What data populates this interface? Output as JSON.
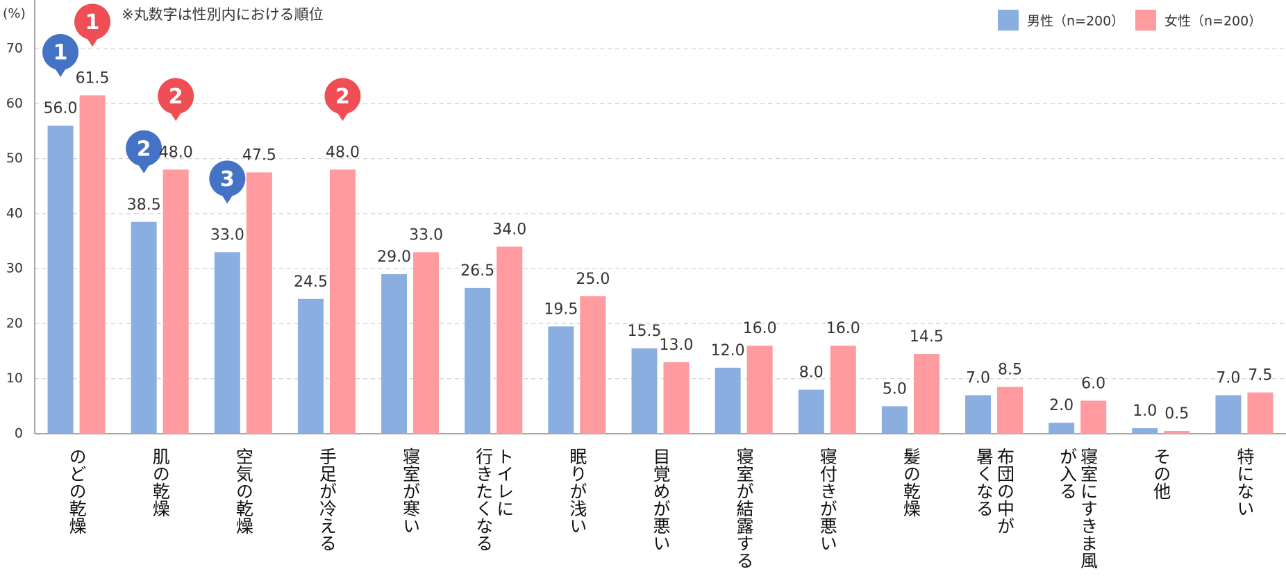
{
  "chart_data": {
    "type": "bar",
    "y_label": "(%)",
    "annotation": "※丸数字は性別内における順位",
    "categories": [
      "のどの乾燥",
      "肌の乾燥",
      "空気の乾燥",
      "手足が冷える",
      "寝室が寒い",
      "トイレに\n行きたくなる",
      "眠りが浅い",
      "目覚めが悪い",
      "寝室が結露する",
      "寝付きが悪い",
      "髪の乾燥",
      "布団の中が\n暑くなる",
      "寝室にすきま風\nが入る",
      "その他",
      "特にない"
    ],
    "series": [
      {
        "name": "男性（n=200）",
        "color": "#8aaee0",
        "values": [
          56,
          38.5,
          33,
          24.5,
          29,
          26.5,
          19.5,
          15.5,
          12,
          8,
          5,
          7,
          2,
          1,
          7
        ],
        "value_labels": [
          "56.0",
          "38.5",
          "33.0",
          "24.5",
          "29.0",
          "26.5",
          "19.5",
          "15.5",
          "12.0",
          "8.0",
          "5.0",
          "7.0",
          "2.0",
          "1.0",
          "7.0"
        ],
        "rank_labels": [
          1,
          2,
          3,
          null,
          null,
          null,
          null,
          null,
          null,
          null,
          null,
          null,
          null,
          null,
          null
        ],
        "rank_color": "#4472c4"
      },
      {
        "name": "女性（n=200）",
        "color": "#ff9a9e",
        "values": [
          61.5,
          48,
          47.5,
          48,
          33,
          34,
          25,
          13,
          16,
          16,
          14.5,
          8.5,
          6,
          0.5,
          7.5
        ],
        "value_labels": [
          "61.5",
          "48.0",
          "47.5",
          "48.0",
          "33.0",
          "34.0",
          "25.0",
          "13.0",
          "16.0",
          "16.0",
          "14.5",
          "8.5",
          "6.0",
          "0.5",
          "7.5"
        ],
        "rank_labels": [
          1,
          2,
          null,
          2,
          null,
          null,
          null,
          null,
          null,
          null,
          null,
          null,
          null,
          null,
          null
        ],
        "rank_color": "#f04e55"
      }
    ],
    "ylim": [
      0,
      70
    ],
    "yticks": [
      0,
      10,
      20,
      30,
      40,
      50,
      60,
      70
    ],
    "grid": true
  }
}
